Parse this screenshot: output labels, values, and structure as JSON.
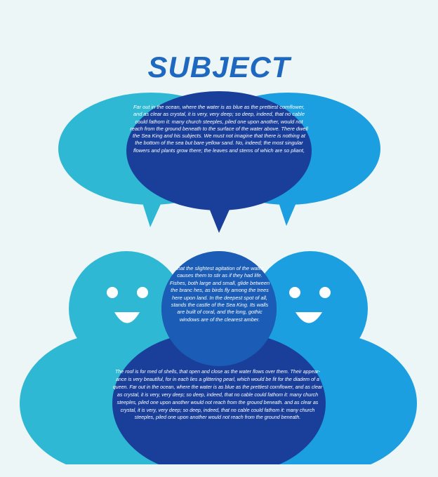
{
  "title": "SUBJECT",
  "colors": {
    "background": "#ecf6f7",
    "title": "#1f68c0",
    "light_teal": "#2fb8d3",
    "light_blue": "#1c9fe0",
    "mid_blue": "#1a78c8",
    "dark_blue": "#1a3f9b",
    "overlap_blue": "#1a5cb6"
  },
  "bubble_text": "Far out in the ocean, where the water is as blue as the prettiest cornflower, and as clear as crystal, it is very, very deep; so deep, indeed, that no cable could fathom it: many church steeples, piled one upon another, would not reach from the ground beneath to the surface of the water above. There dwell the Sea King and his subjects. We must not imagine that there is nothing at the bottom of the sea but bare yellow sand. No, indeed; the most singular flowers and plants grow there; the leaves and stems of which are so pliant,",
  "head_text": "that the slightest agitation of the water causes them to stir as if they had life. Fishes, both large and small, glide between the branc hes, as birds fly among the trees here upon land. In the deepest spot of all, stands the castle of the Sea King. Its walls are built of coral, and the long, gothic windows are of the clearest amber.",
  "body_text": "The roof is for med of shells, that open and close as the water flows over them. Their appear- ance is very beautiful, for in each lies a glittering pearl, which would be fit for the diadem of a queen. Far out in the ocean, where the water is as blue as the prettiest cornflower, and as clear as crystal, it is very, very deep; so deep, indeed, that no cable could fathom it: many church steeples, piled one upon another would not reach from the ground beneath. and as clear as crystal, it is very, very deep; so deep, indeed, that no cable could fathom it: many church steeples, piled one upon another would not reach from the ground beneath."
}
